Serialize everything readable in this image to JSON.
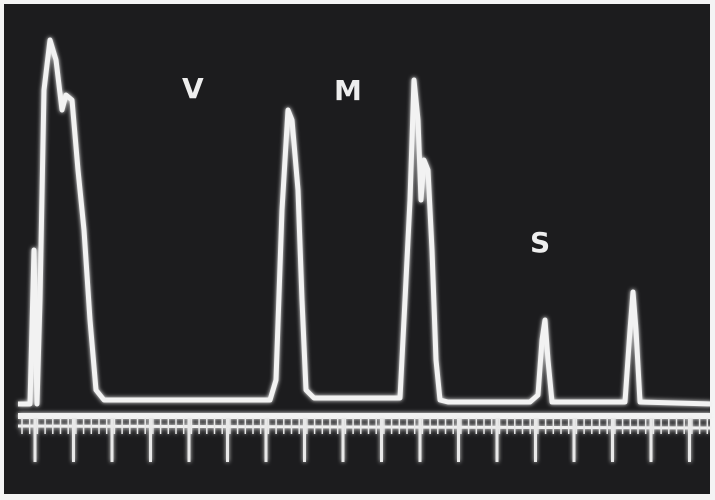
{
  "labels": [
    "V",
    "M",
    "S"
  ]
}
